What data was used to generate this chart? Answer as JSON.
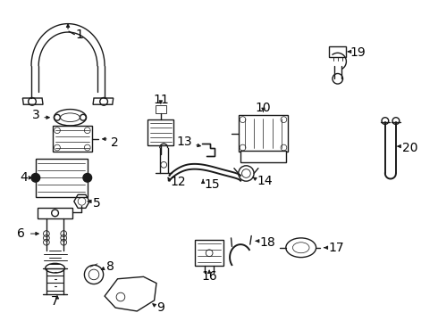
{
  "background_color": "#ffffff",
  "line_color": "#1a1a1a",
  "fig_w": 4.9,
  "fig_h": 3.6,
  "dpi": 100,
  "components": {
    "label_fontsize": 10,
    "label_color": "#000000"
  }
}
